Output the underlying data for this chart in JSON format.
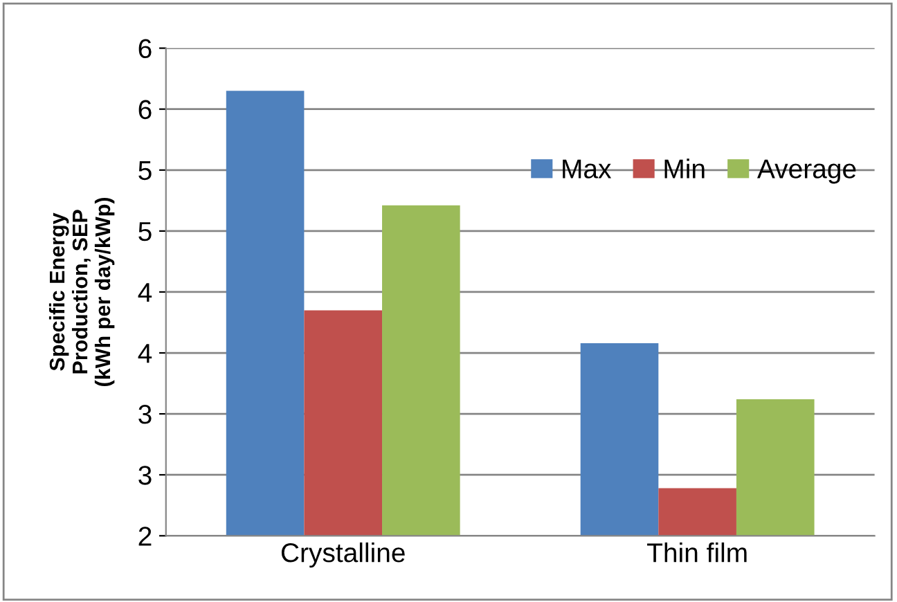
{
  "chart_data": {
    "type": "bar",
    "ylabel": "Specific Energy\nProduction, SEP\n(kWh per day/kWp)",
    "categories": [
      "Crystalline",
      "Thin film"
    ],
    "series": [
      {
        "name": "Max",
        "color": "#4f81bd",
        "values": [
          5.65,
          3.58
        ]
      },
      {
        "name": "Min",
        "color": "#c0504d",
        "values": [
          3.85,
          2.39
        ]
      },
      {
        "name": "Average",
        "color": "#9bbb59",
        "values": [
          4.71,
          3.12
        ]
      }
    ],
    "ylim": [
      2,
      6
    ],
    "yticks": [
      2,
      {
        "value": 2.5,
        "label": "3"
      },
      3,
      {
        "value": 3.5,
        "label": "4"
      },
      4,
      {
        "value": 4.5,
        "label": "5"
      },
      5,
      {
        "value": 5.5,
        "label": "6"
      },
      6
    ],
    "grid": "y",
    "legend": "top right"
  }
}
